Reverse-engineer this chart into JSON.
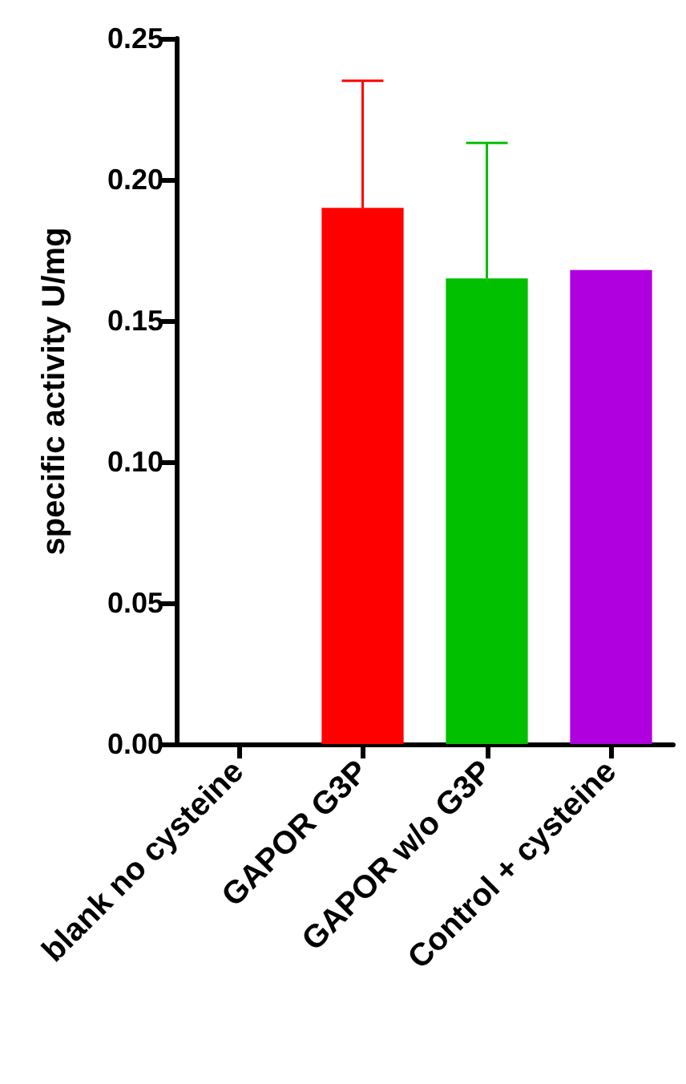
{
  "chart_data": {
    "type": "bar",
    "ylabel": "specific activity U/mg",
    "categories": [
      "blank no cysteine",
      "GAPOR G3P",
      "GAPOR w/o G3P",
      "Control + cysteine"
    ],
    "values": [
      0,
      0.19,
      0.165,
      0.168
    ],
    "colors": [
      "#000000",
      "#ff0000",
      "#00c000",
      "#b000e0"
    ],
    "errors": [
      null,
      [
        0.19,
        0.235
      ],
      [
        0.165,
        0.213
      ],
      null
    ],
    "ylim": [
      0,
      0.25
    ],
    "yticks": [
      {
        "value": 0,
        "label": "0.00"
      },
      {
        "value": 0.05,
        "label": "0.05"
      },
      {
        "value": 0.1,
        "label": "0.10"
      },
      {
        "value": 0.15,
        "label": "0.15"
      },
      {
        "value": 0.2,
        "label": "0.20"
      },
      {
        "value": 0.25,
        "label": "0.25"
      }
    ],
    "grid": false
  }
}
